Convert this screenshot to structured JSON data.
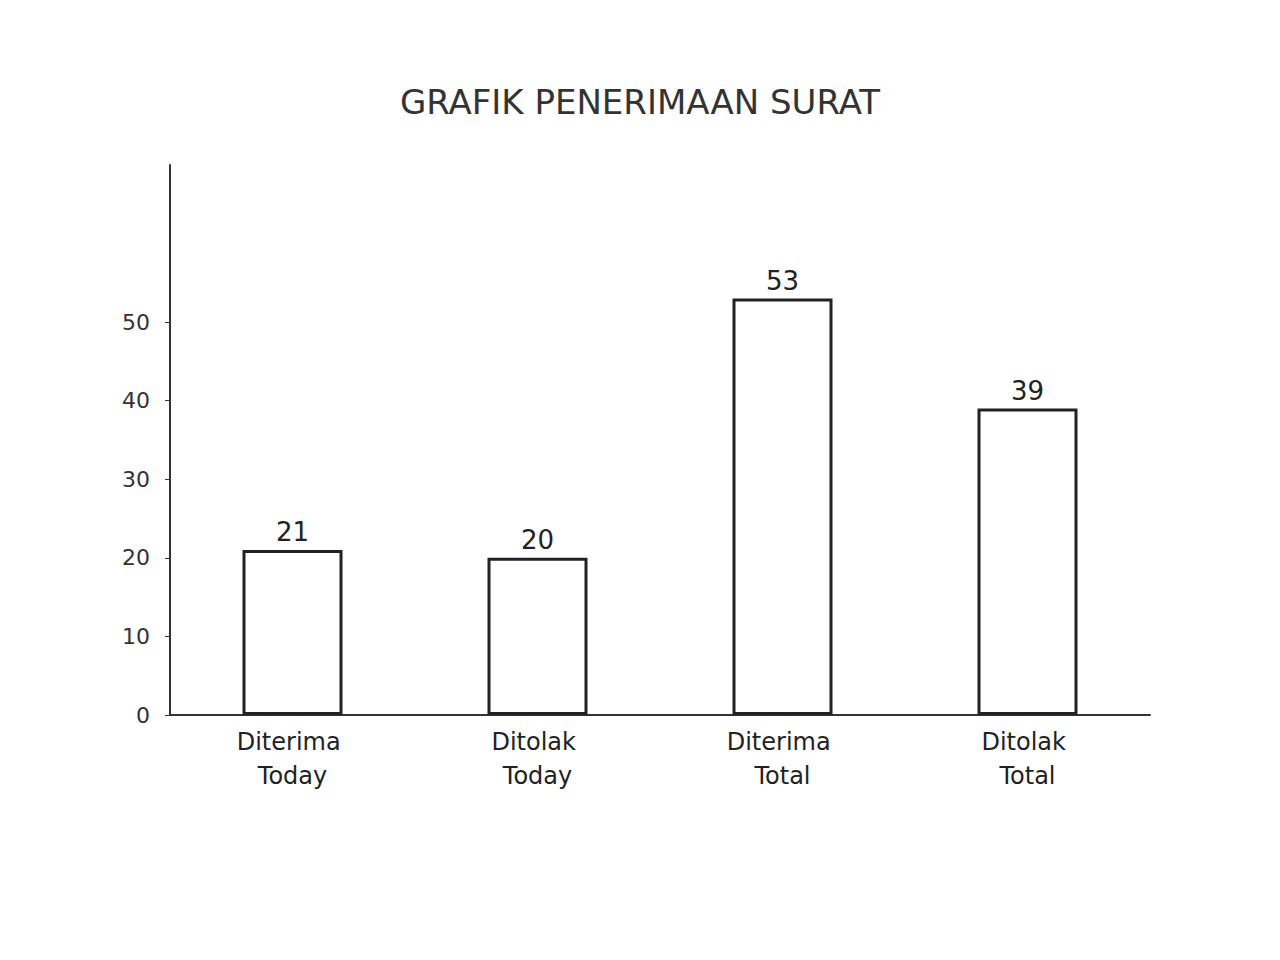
{
  "chart_data": {
    "type": "bar",
    "title": "GRAFIK PENERIMAAN SURAT",
    "categories": [
      "Diterima Today",
      "Ditolak Today",
      "Diterima Total",
      "Ditolak Total"
    ],
    "values": [
      21,
      20,
      53,
      39
    ],
    "color": "#ffffff",
    "ylim": [
      0,
      70
    ],
    "yticks": [
      0,
      10,
      20,
      30,
      40,
      50
    ],
    "grid": false,
    "data_labels": true
  }
}
